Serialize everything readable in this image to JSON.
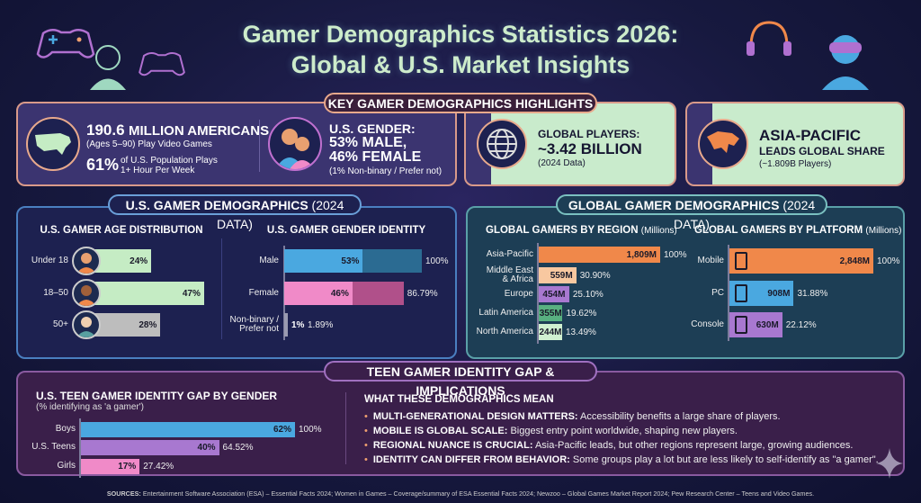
{
  "header": {
    "title_line1": "Gamer Demographics Statistics 2026:",
    "title_line2": "Global & U.S. Market Insights"
  },
  "highlights": {
    "pill": "KEY GAMER DEMOGRAPHICS HIGHLIGHTS",
    "americans": {
      "number": "190.6",
      "label": "MILLION AMERICANS",
      "sub": "(Ages 5–90) Play Video Games",
      "pct": "61%",
      "pct_text_1": "of U.S. Population Plays",
      "pct_text_2": "1+ Hour Per Week"
    },
    "gender": {
      "line1": "U.S. GENDER:",
      "line2": "53% MALE,",
      "line3": "46% FEMALE",
      "note": "(1% Non-binary / Prefer not)"
    },
    "global": {
      "line1": "GLOBAL PLAYERS:",
      "line2": "~3.42 BILLION",
      "note": "(2024 Data)"
    },
    "asia": {
      "line1": "ASIA-PACIFIC",
      "line2": "LEADS GLOBAL SHARE",
      "note": "(~1.809B Players)"
    }
  },
  "us_section": {
    "pill_bold": "U.S. GAMER DEMOGRAPHICS",
    "pill_light": "(2024 DATA)"
  },
  "global_section": {
    "pill_bold": "GLOBAL GAMER DEMOGRAPHICS",
    "pill_light": "(2024 DATA)"
  },
  "teen_section": {
    "pill": "TEEN GAMER IDENTITY GAP & IMPLICATIONS",
    "meaning_title": "WHAT THESE DEMOGRAPHICS MEAN",
    "bullets": [
      {
        "bold": "MULTI-GENERATIONAL DESIGN MATTERS:",
        "text": "Accessibility benefits a large share of players."
      },
      {
        "bold": "MOBILE IS GLOBAL SCALE:",
        "text": "Biggest entry point worldwide, shaping new players."
      },
      {
        "bold": "REGIONAL NUANCE IS CRUCIAL:",
        "text": "Asia-Pacific leads, but other regions represent large, growing audiences."
      },
      {
        "bold": "IDENTITY CAN DIFFER FROM BEHAVIOR:",
        "text": "Some groups play a lot but are less likely to self-identify as \"a gamer\"."
      }
    ]
  },
  "footer": {
    "sources_label": "SOURCES:",
    "sources": "Entertainment Software Association (ESA) – Essential Facts 2024; Women in Games – Coverage/summary of ESA Essential Facts 2024; Newzoo – Global Games Market Report 2024; Pew Research Center – Teens and Video Games."
  },
  "colors": {
    "accent_orange": "#f0884a",
    "blue": "#4aa8e0",
    "pink": "#f08ac8",
    "purple": "#a878d0",
    "mint": "#c5ecc4"
  },
  "chart_data": [
    {
      "type": "bar",
      "orientation": "horizontal",
      "title": "U.S. GAMER AGE DISTRIBUTION",
      "categories": [
        "Under 18",
        "18–50",
        "50+"
      ],
      "values": [
        24,
        47,
        28
      ],
      "value_labels": [
        "24%",
        "47%",
        "28%"
      ],
      "colors": [
        "#c5ecc4",
        "#c5ecc4",
        "#bdbdbd"
      ]
    },
    {
      "type": "bar",
      "orientation": "horizontal",
      "title": "U.S. GAMER GENDER IDENTITY",
      "categories": [
        "Male",
        "Female",
        "Non-binary / Prefer not"
      ],
      "values": [
        53,
        46,
        1
      ],
      "value_labels": [
        "53%",
        "46%",
        "1%"
      ],
      "relative": [
        100,
        86.79,
        1.89
      ],
      "relative_labels": [
        "100%",
        "86.79%",
        "1.89%"
      ],
      "colors": [
        "#4aa8e0",
        "#f08ac8",
        "#9a9ab0"
      ],
      "relative_colors": [
        "#2b6b92",
        "#b0508a",
        "#777790"
      ]
    },
    {
      "type": "bar",
      "orientation": "horizontal",
      "title": "GLOBAL GAMERS BY REGION",
      "unit": "(Millions)",
      "categories": [
        "Asia-Pacific",
        "Middle East & Africa",
        "Europe",
        "Latin America",
        "North America"
      ],
      "values": [
        1809,
        559,
        454,
        355,
        244
      ],
      "value_labels": [
        "1,809M",
        "559M",
        "454M",
        "355M",
        "244M"
      ],
      "relative_labels": [
        "100%",
        "30.90%",
        "25.10%",
        "19.62%",
        "13.49%"
      ],
      "colors": [
        "#f0884a",
        "#f8c8a0",
        "#a878d0",
        "#58b080",
        "#d0f0d0"
      ]
    },
    {
      "type": "bar",
      "orientation": "horizontal",
      "title": "GLOBAL GAMERS BY PLATFORM",
      "unit": "(Millions)",
      "categories": [
        "Mobile",
        "PC",
        "Console"
      ],
      "values": [
        2848,
        908,
        630
      ],
      "value_labels": [
        "2,848M",
        "908M",
        "630M"
      ],
      "relative_labels": [
        "100%",
        "31.88%",
        "22.12%"
      ],
      "icons": [
        "smartphone-icon",
        "desktop-pc-icon",
        "game-console-icon"
      ],
      "colors": [
        "#f0884a",
        "#4aa8e0",
        "#a878d0"
      ]
    },
    {
      "type": "bar",
      "orientation": "horizontal",
      "title": "U.S. TEEN GAMER IDENTITY GAP BY GENDER",
      "subtitle": "(% identifying as 'a gamer')",
      "categories": [
        "Boys",
        "U.S. Teens",
        "Girls"
      ],
      "values": [
        62,
        40,
        17
      ],
      "value_labels": [
        "62%",
        "40%",
        "17%"
      ],
      "relative_labels": [
        "100%",
        "64.52%",
        "27.42%"
      ],
      "colors": [
        "#4aa8e0",
        "#a878d0",
        "#f08ac8"
      ]
    }
  ]
}
